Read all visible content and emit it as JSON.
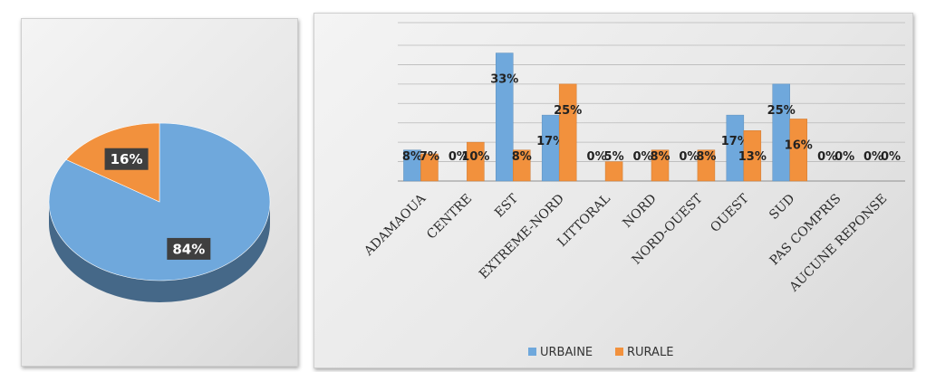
{
  "chart_data": [
    {
      "type": "pie",
      "labels": [
        "",
        ""
      ],
      "values": [
        84,
        16
      ],
      "value_labels": [
        "84%",
        "16%"
      ],
      "colors": [
        "#6fa8dc",
        "#f2913d"
      ],
      "title": "",
      "legend": "none"
    },
    {
      "type": "bar",
      "categories": [
        "ADAMAOUA",
        "CENTRE",
        "EST",
        "EXTREME-NORD",
        "LITTORAL",
        "NORD",
        "NORD-OUEST",
        "OUEST",
        "SUD",
        "PAS COMPRIS",
        "AUCUNE REPONSE"
      ],
      "series": [
        {
          "name": "URBAINE",
          "color": "#6fa8dc",
          "values": [
            8,
            0,
            33,
            17,
            0,
            0,
            0,
            17,
            25,
            0,
            0
          ],
          "labels": [
            "8%",
            "0%",
            "33%",
            "17%",
            "0%",
            "0%",
            "0%",
            "17%",
            "25%",
            "0%",
            "0%"
          ]
        },
        {
          "name": "RURALE",
          "color": "#f2913d",
          "values": [
            7,
            10,
            8,
            25,
            5,
            8,
            8,
            13,
            16,
            0,
            0
          ],
          "labels": [
            "7%",
            "10%",
            "8%",
            "25%",
            "5%",
            "8%",
            "8%",
            "13%",
            "16%",
            "0%",
            "0%"
          ]
        }
      ],
      "title": "",
      "xlabel": "",
      "ylabel": "",
      "ylim": [
        0,
        35
      ],
      "grid": true,
      "legend": "bottom"
    }
  ]
}
